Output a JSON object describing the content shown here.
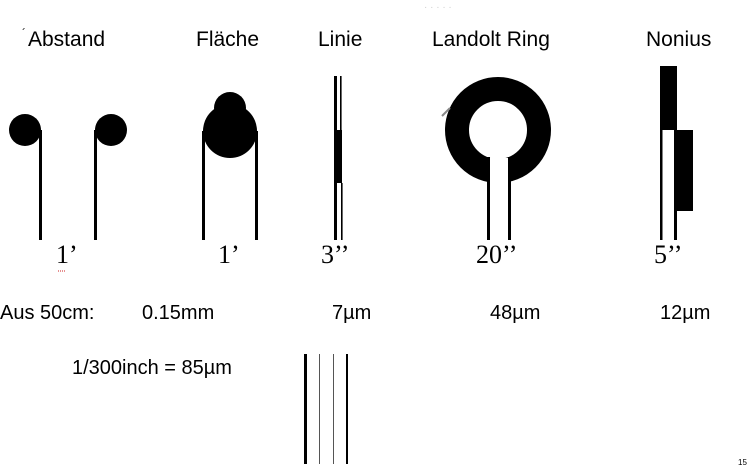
{
  "columns": [
    {
      "header": "Abstand",
      "angle": "1’",
      "resolution": "0.15mm"
    },
    {
      "header": "Fläche",
      "angle": "1’",
      "resolution": "0.15mm"
    },
    {
      "header": "Linie",
      "angle": "3’’",
      "resolution": "7µm"
    },
    {
      "header": "Landolt Ring",
      "angle": "20’’",
      "resolution": "48µm"
    },
    {
      "header": "Nonius",
      "angle": "5’’",
      "resolution": "12µm"
    }
  ],
  "distance_label": "Aus 50cm:",
  "footnote": "1/300inch = 85µm",
  "page_number": "15"
}
